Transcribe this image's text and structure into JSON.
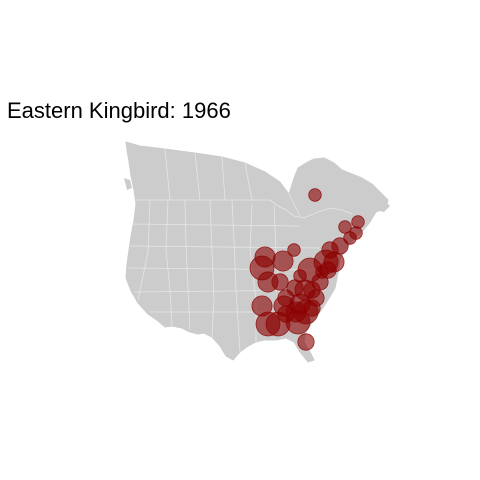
{
  "title": "Eastern Kingbird: 1966",
  "map": {
    "region": "United States and southern Canada",
    "land_color": "#cccccc",
    "border_color": "#e4e4e4",
    "marker_color": "#8b0000",
    "marker_opacity": 0.6
  },
  "observations": [
    {
      "region": "Quebec",
      "size": 2
    },
    {
      "region": "Nova Scotia",
      "size": 2
    },
    {
      "region": "Nova Scotia",
      "size": 2
    },
    {
      "region": "New Brunswick",
      "size": 2
    },
    {
      "region": "Maine",
      "size": 2
    },
    {
      "region": "Vermont",
      "size": 3
    },
    {
      "region": "New York",
      "size": 5
    },
    {
      "region": "New York",
      "size": 4
    },
    {
      "region": "Massachusetts",
      "size": 3
    },
    {
      "region": "Massachusetts",
      "size": 2
    },
    {
      "region": "Connecticut",
      "size": 3
    },
    {
      "region": "Pennsylvania",
      "size": 5
    },
    {
      "region": "Pennsylvania",
      "size": 4
    },
    {
      "region": "Pennsylvania",
      "size": 3
    },
    {
      "region": "New Jersey",
      "size": 3
    },
    {
      "region": "Ohio",
      "size": 2
    },
    {
      "region": "Illinois",
      "size": 4
    },
    {
      "region": "Indiana",
      "size": 4
    },
    {
      "region": "Wisconsin",
      "size": 2
    },
    {
      "region": "Kentucky",
      "size": 3
    },
    {
      "region": "Missouri",
      "size": 4
    },
    {
      "region": "Maryland",
      "size": 3
    },
    {
      "region": "Virginia",
      "size": 3
    },
    {
      "region": "West Virginia",
      "size": 3
    },
    {
      "region": "Virginia",
      "size": 3
    },
    {
      "region": "Tennessee",
      "size": 5
    },
    {
      "region": "North Carolina",
      "size": 4
    },
    {
      "region": "North Carolina",
      "size": 3
    },
    {
      "region": "South Carolina",
      "size": 5
    },
    {
      "region": "Arkansas",
      "size": 5
    },
    {
      "region": "Alabama",
      "size": 5
    },
    {
      "region": "Mississippi",
      "size": 4
    },
    {
      "region": "Georgia",
      "size": 5
    },
    {
      "region": "Georgia",
      "size": 4
    },
    {
      "region": "Florida",
      "size": 3
    },
    {
      "region": "Louisiana",
      "size": 4
    }
  ]
}
